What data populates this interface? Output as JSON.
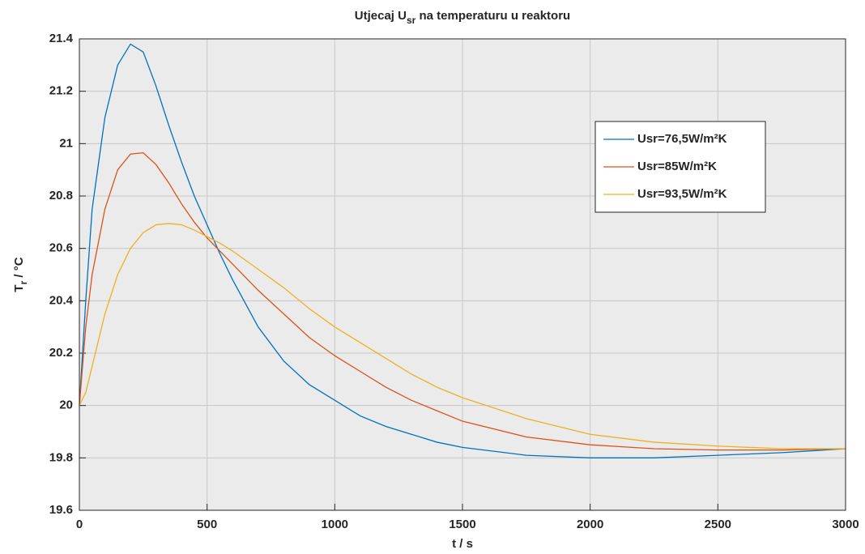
{
  "chart_data": {
    "type": "line",
    "title": [
      "Utjecaj U",
      "sr",
      " na temperaturu u reaktoru"
    ],
    "x_label": "t / s",
    "y_label": [
      "T",
      "r",
      " / °C"
    ],
    "x": [
      0,
      25,
      50,
      100,
      150,
      200,
      250,
      300,
      350,
      400,
      450,
      500,
      550,
      600,
      700,
      800,
      900,
      1000,
      1100,
      1200,
      1300,
      1400,
      1500,
      1750,
      2000,
      2250,
      2500,
      2750,
      3000
    ],
    "series": [
      {
        "name": "Usr=76,5W/m²K",
        "color": "#0072bd",
        "values": [
          20,
          20.4,
          20.75,
          21.1,
          21.3,
          21.38,
          21.35,
          21.22,
          21.07,
          20.93,
          20.8,
          20.69,
          20.58,
          20.48,
          20.3,
          20.17,
          20.08,
          20.02,
          19.96,
          19.92,
          19.89,
          19.86,
          19.84,
          19.81,
          19.8,
          19.8,
          19.81,
          19.82,
          19.835
        ]
      },
      {
        "name": "Usr=85W/m²K",
        "color": "#d95319",
        "values": [
          20,
          20.3,
          20.5,
          20.75,
          20.9,
          20.96,
          20.965,
          20.92,
          20.85,
          20.77,
          20.7,
          20.64,
          20.59,
          20.54,
          20.44,
          20.35,
          20.26,
          20.19,
          20.13,
          20.07,
          20.02,
          19.98,
          19.94,
          19.88,
          19.85,
          19.835,
          19.83,
          19.83,
          19.835
        ]
      },
      {
        "name": "Usr=93,5W/m²K",
        "color": "#edb120",
        "values": [
          20,
          20.05,
          20.15,
          20.35,
          20.5,
          20.6,
          20.66,
          20.69,
          20.695,
          20.69,
          20.67,
          20.645,
          20.62,
          20.59,
          20.52,
          20.45,
          20.37,
          20.3,
          20.24,
          20.18,
          20.12,
          20.07,
          20.03,
          19.95,
          19.89,
          19.86,
          19.845,
          19.835,
          19.835
        ]
      }
    ],
    "xlim": [
      0,
      3000
    ],
    "xticks": [
      0,
      500,
      1000,
      1500,
      2000,
      2500,
      3000
    ],
    "ylim": [
      19.6,
      21.4
    ],
    "yticks": [
      19.6,
      19.8,
      20,
      20.2,
      20.4,
      20.6,
      20.8,
      21,
      21.2,
      21.4
    ],
    "grid": true,
    "legend": "upper right"
  }
}
